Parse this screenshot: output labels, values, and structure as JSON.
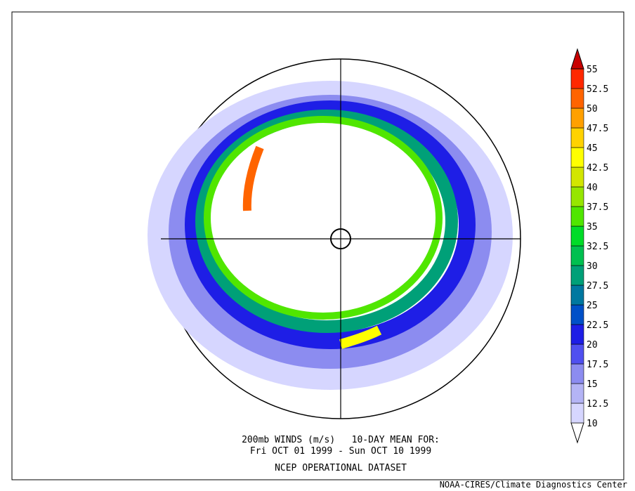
{
  "caption": {
    "line1": "200mb WINDS (m/s)   10-DAY MEAN FOR:",
    "line2": "Fri OCT 01 1999 - Sun OCT 10 1999",
    "line3": "NCEP OPERATIONAL DATASET"
  },
  "colorbar": {
    "levels": [
      10,
      12.5,
      15,
      17.5,
      20,
      22.5,
      25,
      27.5,
      30,
      32.5,
      35,
      37.5,
      40,
      42.5,
      45,
      47.5,
      50,
      52.5,
      55
    ],
    "colors": [
      "#ffffff",
      "#d6d6ff",
      "#b4b4f5",
      "#8c8cf0",
      "#5050f0",
      "#1e1ee6",
      "#0050c8",
      "#0078a0",
      "#00a078",
      "#00c050",
      "#00dc28",
      "#50e600",
      "#96e600",
      "#d2e600",
      "#ffff00",
      "#ffd200",
      "#ffa000",
      "#ff6400",
      "#ff2800",
      "#c80000"
    ]
  },
  "credit": "NOAA-CIRES/Climate Diagnostics Center"
}
